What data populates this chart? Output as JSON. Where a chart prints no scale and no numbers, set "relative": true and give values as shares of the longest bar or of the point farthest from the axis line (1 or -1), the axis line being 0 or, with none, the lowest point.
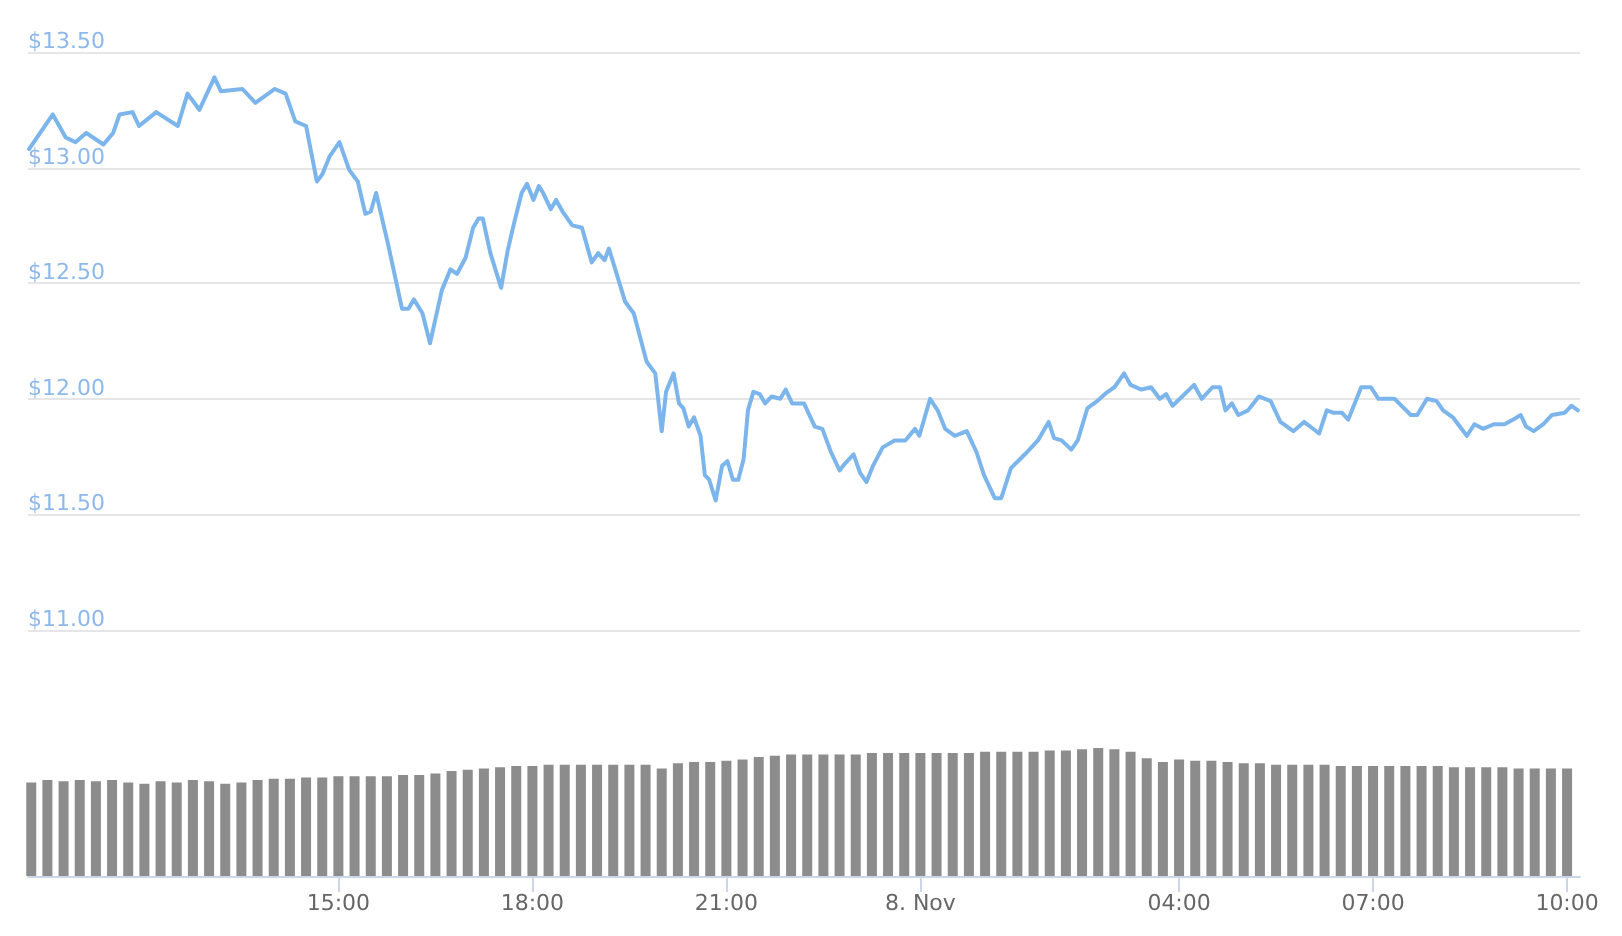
{
  "chart_data": [
    {
      "type": "line",
      "tick_labels": "y",
      "grid": "y",
      "marker": "none",
      "line_style": "solid",
      "xlim": [
        "--11-07T10:12",
        "--11-08T10:12"
      ],
      "ylim": [
        11,
        13.5
      ],
      "yticks": [
        {
          "value": 11,
          "label": "$11.00"
        },
        {
          "value": 11.5,
          "label": "$11.50"
        },
        {
          "value": 12,
          "label": "$12.00"
        },
        {
          "value": 12.5,
          "label": "$12.50"
        },
        {
          "value": 13,
          "label": "$13.00"
        },
        {
          "value": 13.5,
          "label": "$13.50"
        }
      ],
      "series": [
        {
          "color": "#7cb5ec",
          "x": [
            "--11-07T10:13",
            "--11-07T10:35",
            "--11-07T10:47",
            "--11-07T10:56",
            "--11-07T11:06",
            "--11-07T11:22",
            "--11-07T11:31",
            "--11-07T11:37",
            "--11-07T11:49",
            "--11-07T11:55",
            "--11-07T12:11",
            "--11-07T12:31",
            "--11-07T12:40",
            "--11-07T12:51",
            "--11-07T13:05",
            "--11-07T13:11",
            "--11-07T13:31",
            "--11-07T13:43",
            "--11-07T14:01",
            "--11-07T14:11",
            "--11-07T14:20",
            "--11-07T14:30",
            "--11-07T14:40",
            "--11-07T14:45",
            "--11-07T14:52",
            "--11-07T15:01",
            "--11-07T15:10",
            "--11-07T15:18",
            "--11-07T15:25",
            "--11-07T15:30",
            "--11-07T15:35",
            "--11-07T15:46",
            "--11-07T15:59",
            "--11-07T16:05",
            "--11-07T16:10",
            "--11-07T16:18",
            "--11-07T16:25",
            "--11-07T16:36",
            "--11-07T16:44",
            "--11-07T16:50",
            "--11-07T16:58",
            "--11-07T17:05",
            "--11-07T17:10",
            "--11-07T17:14",
            "--11-07T17:21",
            "--11-07T17:31",
            "--11-07T17:37",
            "--11-07T17:43",
            "--11-07T17:50",
            "--11-07T17:55",
            "--11-07T18:01",
            "--11-07T18:06",
            "--11-07T18:10",
            "--11-07T18:17",
            "--11-07T18:22",
            "--11-07T18:28",
            "--11-07T18:37",
            "--11-07T18:46",
            "--11-07T18:55",
            "--11-07T19:01",
            "--11-07T19:07",
            "--11-07T19:11",
            "--11-07T19:26",
            "--11-07T19:34",
            "--11-07T19:46",
            "--11-07T19:54",
            "--11-07T20:00",
            "--11-07T20:04",
            "--11-07T20:11",
            "--11-07T20:16",
            "--11-07T20:20",
            "--11-07T20:25",
            "--11-07T20:30",
            "--11-07T20:36",
            "--11-07T20:40",
            "--11-07T20:44",
            "--11-07T20:50",
            "--11-07T20:56",
            "--11-07T21:01",
            "--11-07T21:06",
            "--11-07T21:11",
            "--11-07T21:16",
            "--11-07T21:20",
            "--11-07T21:25",
            "--11-07T21:31",
            "--11-07T21:36",
            "--11-07T21:42",
            "--11-07T21:50",
            "--11-07T21:55",
            "--11-07T22:01",
            "--11-07T22:12",
            "--11-07T22:22",
            "--11-07T22:29",
            "--11-07T22:37",
            "--11-07T22:45",
            "--11-07T22:50",
            "--11-07T22:58",
            "--11-07T23:04",
            "--11-07T23:10",
            "--11-07T23:16",
            "--11-07T23:25",
            "--11-07T23:36",
            "--11-07T23:46",
            "--11-07T23:55",
            "--11-07T23:59",
            "--11-08T00:09",
            "--11-08T00:16",
            "--11-08T00:23",
            "--11-08T00:32",
            "--11-08T00:43",
            "--11-08T00:52",
            "--11-08T00:59",
            "--11-08T01:09",
            "--11-08T01:15",
            "--11-08T01:24",
            "--11-08T01:37",
            "--11-08T01:49",
            "--11-08T01:59",
            "--11-08T02:04",
            "--11-08T02:11",
            "--11-08T02:20",
            "--11-08T02:26",
            "--11-08T02:35",
            "--11-08T02:44",
            "--11-08T02:51",
            "--11-08T03:00",
            "--11-08T03:09",
            "--11-08T03:15",
            "--11-08T03:25",
            "--11-08T03:34",
            "--11-08T03:42",
            "--11-08T03:48",
            "--11-08T03:54",
            "--11-08T04:14",
            "--11-08T04:21",
            "--11-08T04:31",
            "--11-08T04:38",
            "--11-08T04:43",
            "--11-08T04:49",
            "--11-08T04:55",
            "--11-08T05:04",
            "--11-08T05:14",
            "--11-08T05:25",
            "--11-08T05:34",
            "--11-08T05:46",
            "--11-08T05:56",
            "--11-08T06:10",
            "--11-08T06:17",
            "--11-08T06:23",
            "--11-08T06:31",
            "--11-08T06:37",
            "--11-08T06:49",
            "--11-08T06:58",
            "--11-08T07:05",
            "--11-08T07:20",
            "--11-08T07:35",
            "--11-08T07:41",
            "--11-08T07:50",
            "--11-08T07:59",
            "--11-08T08:05",
            "--11-08T08:14",
            "--11-08T08:27",
            "--11-08T08:34",
            "--11-08T08:42",
            "--11-08T08:52",
            "--11-08T09:02",
            "--11-08T09:10",
            "--11-08T09:17",
            "--11-08T09:22",
            "--11-08T09:29",
            "--11-08T09:38",
            "--11-08T09:46",
            "--11-08T09:58",
            "--11-08T10:04",
            "--11-08T10:10"
          ],
          "values": [
            13.08,
            13.23,
            13.13,
            13.11,
            13.15,
            13.1,
            13.15,
            13.23,
            13.24,
            13.18,
            13.24,
            13.18,
            13.32,
            13.25,
            13.39,
            13.33,
            13.34,
            13.28,
            13.34,
            13.32,
            13.2,
            13.18,
            12.94,
            12.97,
            13.05,
            13.11,
            12.99,
            12.94,
            12.8,
            12.81,
            12.89,
            12.67,
            12.39,
            12.39,
            12.43,
            12.37,
            12.24,
            12.47,
            12.56,
            12.54,
            12.61,
            12.74,
            12.78,
            12.78,
            12.63,
            12.48,
            12.64,
            12.76,
            12.89,
            12.93,
            12.86,
            12.92,
            12.89,
            12.82,
            12.86,
            12.81,
            12.75,
            12.74,
            12.59,
            12.63,
            12.6,
            12.65,
            12.42,
            12.37,
            12.16,
            12.11,
            11.86,
            12.03,
            12.11,
            11.98,
            11.96,
            11.88,
            11.92,
            11.84,
            11.67,
            11.65,
            11.56,
            11.71,
            11.73,
            11.65,
            11.65,
            11.74,
            11.95,
            12.03,
            12.02,
            11.98,
            12.01,
            12.0,
            12.04,
            11.98,
            11.98,
            11.88,
            11.87,
            11.77,
            11.69,
            11.72,
            11.76,
            11.68,
            11.64,
            11.71,
            11.79,
            11.82,
            11.82,
            11.87,
            11.84,
            12.0,
            11.95,
            11.87,
            11.84,
            11.86,
            11.77,
            11.67,
            11.57,
            11.57,
            11.7,
            11.76,
            11.82,
            11.9,
            11.83,
            11.82,
            11.78,
            11.82,
            11.96,
            11.99,
            12.02,
            12.05,
            12.11,
            12.06,
            12.04,
            12.05,
            12.0,
            12.02,
            11.97,
            12.06,
            12.0,
            12.05,
            12.05,
            11.95,
            11.98,
            11.93,
            11.95,
            12.01,
            11.99,
            11.9,
            11.86,
            11.9,
            11.85,
            11.95,
            11.94,
            11.94,
            11.91,
            12.05,
            12.05,
            12.0,
            12.0,
            11.93,
            11.93,
            12.0,
            11.99,
            11.95,
            11.92,
            11.84,
            11.89,
            11.87,
            11.89,
            11.89,
            11.91,
            11.93,
            11.88,
            11.86,
            11.89,
            11.93,
            11.94,
            11.97,
            11.95
          ]
        }
      ]
    },
    {
      "type": "bar",
      "relative": true,
      "grid": false,
      "xlim": [
        "--11-07T10:12",
        "--11-08T10:12"
      ],
      "xticks": [
        {
          "value": "--11-07T15:00",
          "label": "15:00"
        },
        {
          "value": "--11-07T18:00",
          "label": "18:00"
        },
        {
          "value": "--11-07T21:00",
          "label": "21:00"
        },
        {
          "value": "--11-08T00:00",
          "label": "8. Nov"
        },
        {
          "value": "--11-08T04:00",
          "label": "04:00"
        },
        {
          "value": "--11-08T07:00",
          "label": "07:00"
        },
        {
          "value": "--11-08T10:00",
          "label": "10:00"
        }
      ],
      "series": [
        {
          "color": "#8c8c8c",
          "x": [
            "--11-07T10:15",
            "--11-07T10:30",
            "--11-07T10:45",
            "--11-07T11:00",
            "--11-07T11:15",
            "--11-07T11:30",
            "--11-07T11:45",
            "--11-07T12:00",
            "--11-07T12:15",
            "--11-07T12:30",
            "--11-07T12:45",
            "--11-07T13:00",
            "--11-07T13:15",
            "--11-07T13:30",
            "--11-07T13:45",
            "--11-07T14:00",
            "--11-07T14:15",
            "--11-07T14:30",
            "--11-07T14:45",
            "--11-07T15:00",
            "--11-07T15:15",
            "--11-07T15:30",
            "--11-07T15:45",
            "--11-07T16:00",
            "--11-07T16:15",
            "--11-07T16:30",
            "--11-07T16:45",
            "--11-07T17:00",
            "--11-07T17:15",
            "--11-07T17:30",
            "--11-07T17:45",
            "--11-07T18:00",
            "--11-07T18:15",
            "--11-07T18:30",
            "--11-07T18:45",
            "--11-07T19:00",
            "--11-07T19:15",
            "--11-07T19:30",
            "--11-07T19:45",
            "--11-07T20:00",
            "--11-07T20:15",
            "--11-07T20:30",
            "--11-07T20:45",
            "--11-07T21:00",
            "--11-07T21:15",
            "--11-07T21:30",
            "--11-07T21:45",
            "--11-07T22:00",
            "--11-07T22:15",
            "--11-07T22:30",
            "--11-07T22:45",
            "--11-07T23:00",
            "--11-07T23:15",
            "--11-07T23:30",
            "--11-07T23:45",
            "--11-08T00:00",
            "--11-08T00:15",
            "--11-08T00:30",
            "--11-08T00:45",
            "--11-08T01:00",
            "--11-08T01:15",
            "--11-08T01:30",
            "--11-08T01:45",
            "--11-08T02:00",
            "--11-08T02:15",
            "--11-08T02:30",
            "--11-08T02:45",
            "--11-08T03:00",
            "--11-08T03:15",
            "--11-08T03:30",
            "--11-08T03:45",
            "--11-08T04:00",
            "--11-08T04:15",
            "--11-08T04:30",
            "--11-08T04:45",
            "--11-08T05:00",
            "--11-08T05:15",
            "--11-08T05:30",
            "--11-08T05:45",
            "--11-08T06:00",
            "--11-08T06:15",
            "--11-08T06:30",
            "--11-08T06:45",
            "--11-08T07:00",
            "--11-08T07:15",
            "--11-08T07:30",
            "--11-08T07:45",
            "--11-08T08:00",
            "--11-08T08:15",
            "--11-08T08:30",
            "--11-08T08:45",
            "--11-08T09:00",
            "--11-08T09:15",
            "--11-08T09:30",
            "--11-08T09:45",
            "--11-08T10:00"
          ],
          "values": [
            0.73,
            0.75,
            0.74,
            0.75,
            0.74,
            0.75,
            0.73,
            0.72,
            0.74,
            0.73,
            0.75,
            0.74,
            0.72,
            0.73,
            0.75,
            0.76,
            0.76,
            0.77,
            0.77,
            0.78,
            0.78,
            0.78,
            0.78,
            0.79,
            0.79,
            0.8,
            0.82,
            0.83,
            0.84,
            0.85,
            0.86,
            0.86,
            0.87,
            0.87,
            0.87,
            0.87,
            0.87,
            0.87,
            0.87,
            0.84,
            0.88,
            0.89,
            0.89,
            0.9,
            0.91,
            0.93,
            0.94,
            0.95,
            0.95,
            0.95,
            0.95,
            0.95,
            0.96,
            0.96,
            0.96,
            0.96,
            0.96,
            0.96,
            0.96,
            0.97,
            0.97,
            0.97,
            0.97,
            0.98,
            0.98,
            0.99,
            1,
            0.99,
            0.97,
            0.92,
            0.89,
            0.91,
            0.9,
            0.9,
            0.89,
            0.88,
            0.88,
            0.87,
            0.87,
            0.87,
            0.87,
            0.86,
            0.86,
            0.86,
            0.86,
            0.86,
            0.86,
            0.86,
            0.85,
            0.85,
            0.85,
            0.85,
            0.84,
            0.84,
            0.84,
            0.84
          ]
        }
      ]
    }
  ]
}
